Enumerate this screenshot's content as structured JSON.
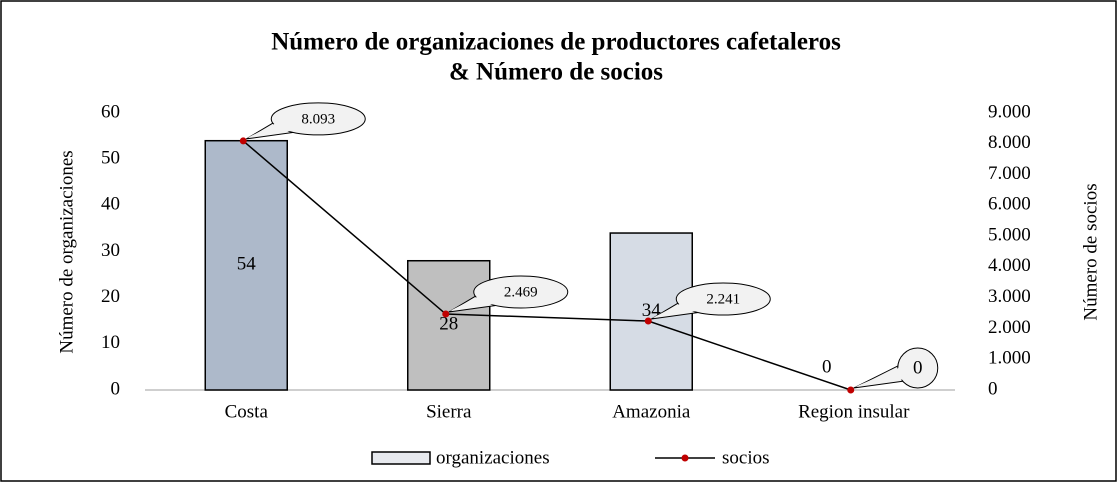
{
  "chart_data": {
    "type": "bar",
    "title": [
      "Número de organizaciones de productores cafetaleros",
      "& Número de socios"
    ],
    "categories": [
      "Costa",
      "Sierra",
      "Amazonia",
      "Region insular"
    ],
    "series": [
      {
        "name": "organizaciones",
        "type": "bar",
        "color": "#e7e9ee",
        "colors": [
          "#adb9ca",
          "#bfbfbf",
          "#d6dce5",
          "#d6dce5"
        ],
        "values": [
          54,
          28,
          34,
          0
        ]
      },
      {
        "name": "socios",
        "type": "line",
        "axis": "y2",
        "color": "#000000",
        "marker_color": "#c00000",
        "values": [
          8093,
          2469,
          2241,
          0
        ],
        "value_labels": [
          "8.093",
          "2.469",
          "2.241",
          "0"
        ]
      }
    ],
    "ylabel": "Número de organizaciones",
    "y2label": "Número de socios",
    "ylim": [
      0,
      60
    ],
    "yticks": [
      0,
      10,
      20,
      30,
      40,
      50,
      60
    ],
    "y2lim": [
      0,
      9000
    ],
    "y2ticks": [
      0,
      {
        "value": 1000,
        "label": "1.000"
      },
      {
        "value": 2000,
        "label": "2.000"
      },
      {
        "value": 3000,
        "label": "3.000"
      },
      {
        "value": 4000,
        "label": "4.000"
      },
      {
        "value": 5000,
        "label": "5.000"
      },
      {
        "value": 6000,
        "label": "6.000"
      },
      {
        "value": 7000,
        "label": "7.000"
      },
      {
        "value": 8000,
        "label": "8.000"
      },
      {
        "value": 9000,
        "label": "9.000"
      }
    ],
    "legend": "bottom"
  }
}
